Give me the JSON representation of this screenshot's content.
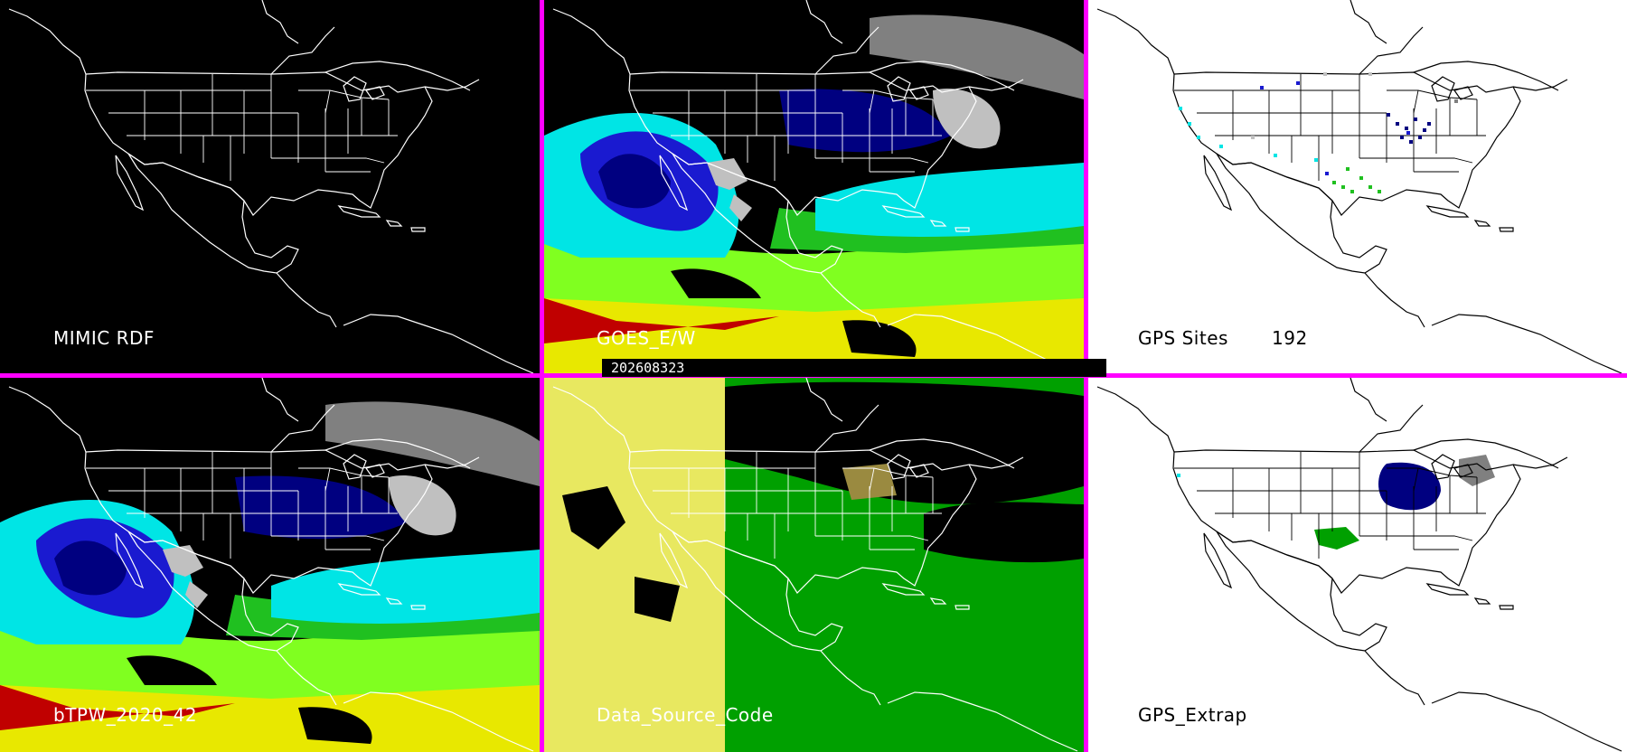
{
  "timestamp": "202608323",
  "panels": [
    {
      "id": "mimic-rdf",
      "label": "MIMIC RDF",
      "background": "#000000",
      "map_line": "#ffffff",
      "label_color": "#ffffff"
    },
    {
      "id": "goes-ew",
      "label": "GOES_E/W",
      "background": "#000000",
      "map_line": "#ffffff",
      "label_color": "#ffffff"
    },
    {
      "id": "gps-sites",
      "label": "GPS Sites",
      "count": "192",
      "background": "#ffffff",
      "map_line": "#000000",
      "label_color": "#000000"
    },
    {
      "id": "btpw",
      "label": "bTPW_2020_42",
      "background": "#000000",
      "map_line": "#ffffff",
      "label_color": "#ffffff"
    },
    {
      "id": "data-source-code",
      "label": "Data_Source_Code",
      "background": "#000000",
      "map_line": "#ffffff",
      "label_color": "#ffffff"
    },
    {
      "id": "gps-extrap",
      "label": "GPS_Extrap",
      "background": "#ffffff",
      "map_line": "#000000",
      "label_color": "#000000"
    }
  ],
  "colors": {
    "divider": "#ff00ff",
    "palette": [
      "#000080",
      "#1a1ad0",
      "#00e5e5",
      "#20c020",
      "#80ff20",
      "#e8e800",
      "#c00000",
      "#808080",
      "#c0c0c0",
      "#e8e860",
      "#00a000"
    ]
  }
}
